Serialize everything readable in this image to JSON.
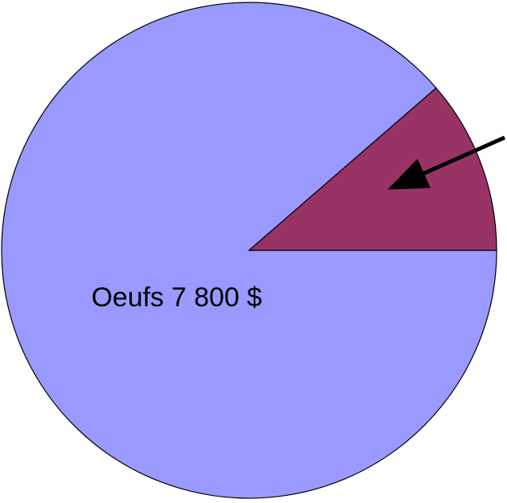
{
  "chart_data": {
    "type": "pie",
    "categories": [
      "Oeufs",
      null
    ],
    "values": [
      7800,
      1000
    ],
    "value_labels": [
      "7 800 $",
      null
    ],
    "colors": [
      "#9999ff",
      "#993366"
    ]
  }
}
